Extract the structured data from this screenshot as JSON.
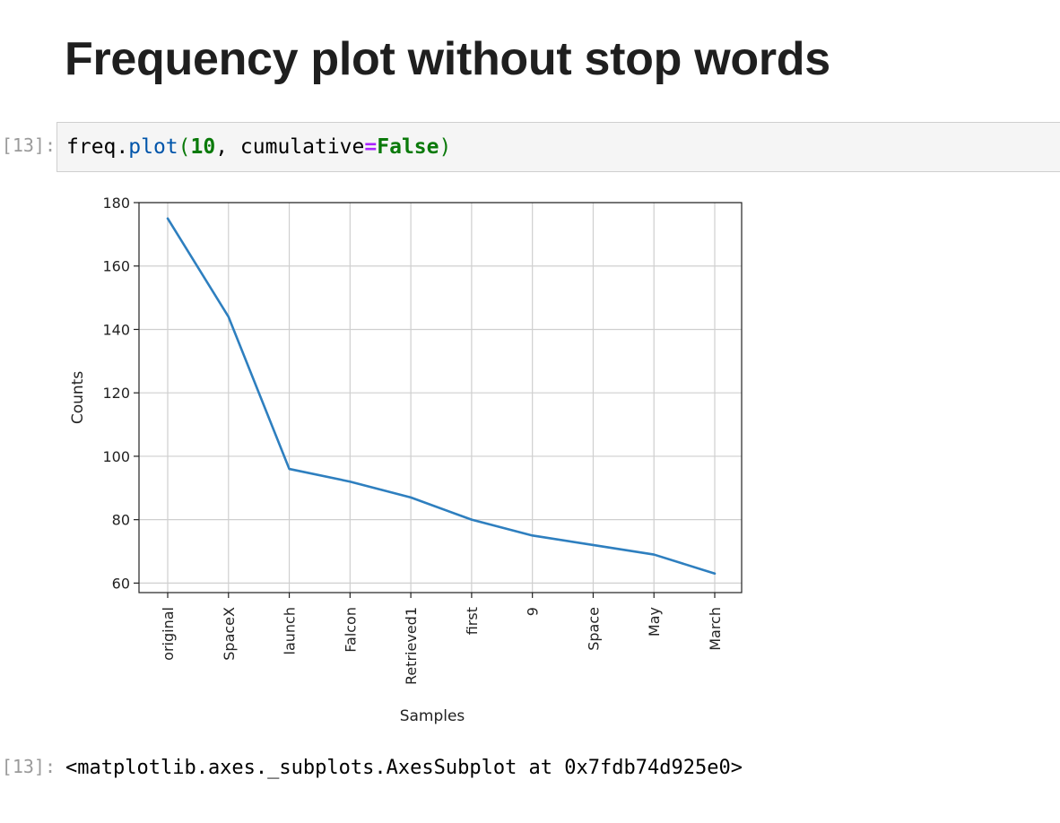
{
  "heading": "Frequency plot without stop words",
  "input_prompt": "In [13]:",
  "code": {
    "var": "freq",
    "dot": ".",
    "fn": "plot",
    "open": "(",
    "num": "10",
    "comma": ", ",
    "kwarg": "cumulative",
    "eq": "=",
    "kwval": "False",
    "close": ")"
  },
  "output_prompt": "Out[13]:",
  "output_text": "<matplotlib.axes._subplots.AxesSubplot at 0x7fdb74d925e0>",
  "chart_data": {
    "type": "line",
    "categories": [
      "original",
      "SpaceX",
      "launch",
      "Falcon",
      "Retrieved1",
      "first",
      "9",
      "Space",
      "May",
      "March"
    ],
    "values": [
      175,
      144,
      96,
      92,
      87,
      80,
      75,
      72,
      69,
      63
    ],
    "xlabel": "Samples",
    "ylabel": "Counts",
    "ylim": [
      57,
      180
    ],
    "yticks": [
      60,
      80,
      100,
      120,
      140,
      160,
      180
    ],
    "grid": true,
    "line_color": "#2e7fbf"
  }
}
